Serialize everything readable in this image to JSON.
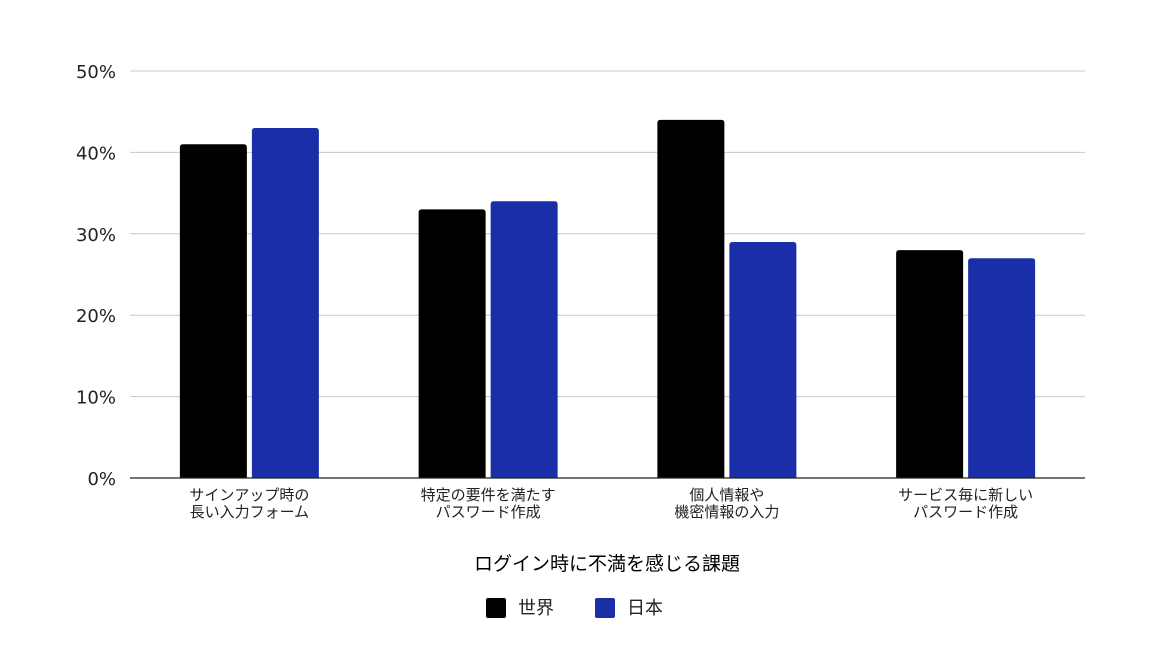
{
  "chart_data": {
    "type": "bar",
    "title": "",
    "xlabel": "ログイン時に不満を感じる課題",
    "ylabel": "",
    "categories": [
      [
        "サインアップ時の",
        "長い入力フォーム"
      ],
      [
        "特定の要件を満たす",
        "パスワード作成"
      ],
      [
        "個人情報や",
        "機密情報の入力"
      ],
      [
        "サービス毎に新しい",
        "パスワード作成"
      ]
    ],
    "series": [
      {
        "name": "世界",
        "color": "#000000",
        "values": [
          41,
          33,
          44,
          28
        ]
      },
      {
        "name": "日本",
        "color": "#1a2ea8",
        "values": [
          43,
          34,
          29,
          27
        ]
      }
    ],
    "ylim": [
      0,
      50
    ],
    "yticks": [
      0,
      10,
      20,
      30,
      40,
      50
    ],
    "ytick_labels": [
      "0%",
      "10%",
      "20%",
      "30%",
      "40%",
      "50%"
    ],
    "grid": true,
    "legend_position": "bottom"
  }
}
